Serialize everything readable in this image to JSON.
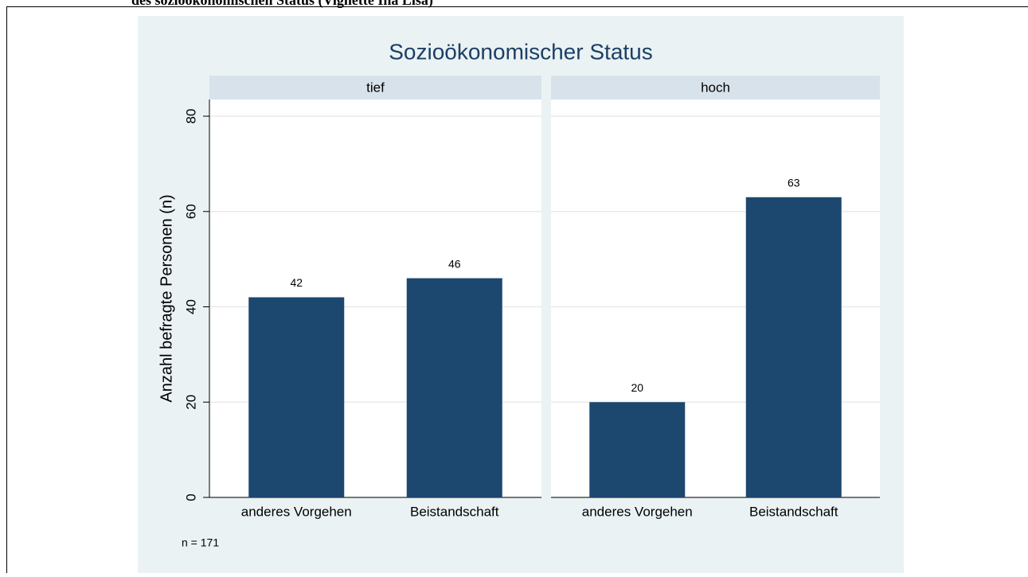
{
  "caption": "des sozioökonomischen Status (Vignette Ina Lisa)",
  "chart_data": {
    "type": "bar",
    "title": "Sozioökonomischer Status",
    "ylabel": "Anzahl befragte Personen (n)",
    "note": "n = 171",
    "categories": [
      "anderes Vorgehen",
      "Beistandschaft"
    ],
    "panels": [
      {
        "name": "tief",
        "values": [
          42,
          46
        ]
      },
      {
        "name": "hoch",
        "values": [
          20,
          63
        ]
      }
    ],
    "color": "#1c476f",
    "ylim": [
      0,
      80
    ],
    "yticks": [
      0,
      20,
      40,
      60,
      80
    ],
    "grid": true
  }
}
